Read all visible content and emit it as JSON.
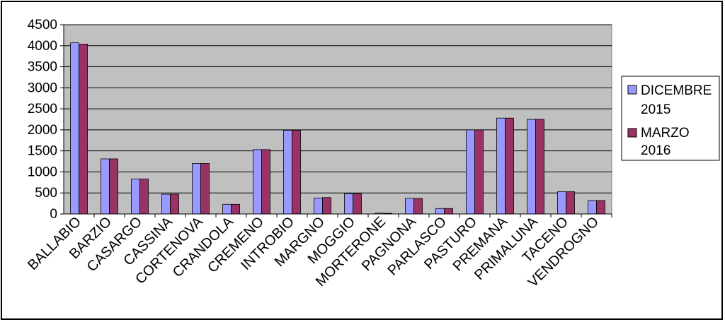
{
  "chart_data": {
    "type": "bar",
    "title": "",
    "xlabel": "",
    "ylabel": "",
    "categories": [
      "BALLABIO",
      "BARZIO",
      "CASARGO",
      "CASSINA",
      "CORTENOVA",
      "CRANDOLA",
      "CREMENO",
      "INTROBIO",
      "MARGNO",
      "MOGGIO",
      "MORTERONE",
      "PAGNONA",
      "PARLASCO",
      "PASTURO",
      "PREMANA",
      "PRIMALUNA",
      "TACENO",
      "VENDROGNO"
    ],
    "series": [
      {
        "name": "DICEMBRE 2015",
        "legend_lines": [
          "DICEMBRE",
          "2015"
        ],
        "color": "#9999ff",
        "values": [
          4070,
          1310,
          830,
          470,
          1200,
          230,
          1530,
          1990,
          380,
          480,
          20,
          370,
          130,
          2000,
          2280,
          2250,
          530,
          320
        ]
      },
      {
        "name": "MARZO 2016",
        "legend_lines": [
          "MARZO",
          "2016"
        ],
        "color": "#993366",
        "values": [
          4040,
          1310,
          830,
          470,
          1200,
          230,
          1530,
          1990,
          390,
          480,
          15,
          370,
          130,
          2000,
          2280,
          2250,
          530,
          320
        ]
      }
    ],
    "ylim": [
      0,
      4500
    ],
    "yticks": [
      0,
      500,
      1000,
      1500,
      2000,
      2500,
      3000,
      3500,
      4000,
      4500
    ],
    "grid": true,
    "plot_background": "#c0c0c0",
    "legend_position": "right"
  }
}
